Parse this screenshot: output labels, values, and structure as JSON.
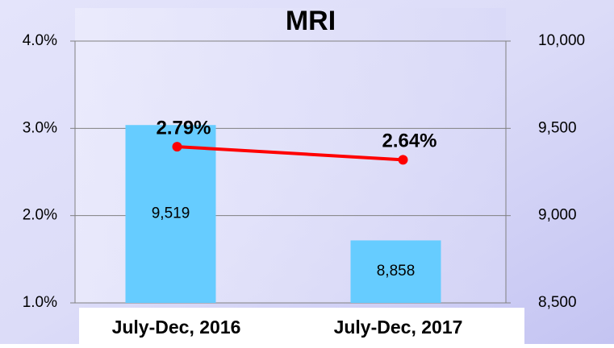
{
  "chart_data": {
    "type": "bar-line",
    "title": "MRI",
    "categories": [
      "July-Dec, 2016",
      "July-Dec, 2017"
    ],
    "series": [
      {
        "type": "bar",
        "axis": "y2",
        "color": "#66ccff",
        "values": [
          9519,
          8858
        ],
        "value_labels": [
          "9,519",
          "8,858"
        ]
      },
      {
        "type": "line",
        "axis": "y",
        "color": "#ff0000",
        "values": [
          2.79,
          2.64
        ],
        "value_labels": [
          "2.79%",
          "2.64%"
        ]
      }
    ],
    "ylim": [
      1,
      4
    ],
    "yticks": [
      {
        "value": 1,
        "label": "1.0%"
      },
      {
        "value": 2,
        "label": "2.0%"
      },
      {
        "value": 3,
        "label": "3.0%"
      },
      {
        "value": 4,
        "label": "4.0%"
      }
    ],
    "y2lim": [
      8500,
      10000
    ],
    "y2ticks": [
      {
        "value": 8500,
        "label": "8,500"
      },
      {
        "value": 9000,
        "label": "9,000"
      },
      {
        "value": 9500,
        "label": "9,500"
      },
      {
        "value": 10000,
        "label": "10,000"
      }
    ],
    "grid": true
  }
}
